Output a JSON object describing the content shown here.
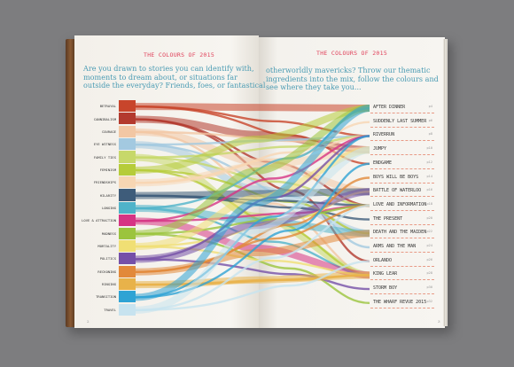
{
  "left_header": "THE COLOURS OF 2015",
  "right_header": "THE COLOURS OF 2015",
  "left_intro": [
    "Are you drawn to stories you can identify with,",
    "moments to dream about, or situations far",
    "outside the everyday? Friends, foes, or fantastical"
  ],
  "right_intro": [
    "otherworldly mavericks? Throw our thematic",
    "ingredients into the mix, follow the colours and",
    "see where they take you..."
  ],
  "themes": [
    {
      "label": "BETRAYAL",
      "color": "#c8452b"
    },
    {
      "label": "CANNIBALISM",
      "color": "#b33a2e"
    },
    {
      "label": "COURAGE",
      "color": "#f2c7a4"
    },
    {
      "label": "EYE WITNESS",
      "color": "#a3c9e0"
    },
    {
      "label": "FAMILY TIES",
      "color": "#c7d86a"
    },
    {
      "label": "FEMINISM",
      "color": "#b6cc3a"
    },
    {
      "label": "FRIENDSHIPS",
      "color": "#f7d6b3"
    },
    {
      "label": "HILARITY",
      "color": "#3e5c7a"
    },
    {
      "label": "LONGING",
      "color": "#4fb3c9"
    },
    {
      "label": "LOVE & ATTRACTION",
      "color": "#d63484"
    },
    {
      "label": "MADNESS",
      "color": "#9bc43d"
    },
    {
      "label": "MORTALITY",
      "color": "#f0df74"
    },
    {
      "label": "POLITICS",
      "color": "#7550a8"
    },
    {
      "label": "RECKONING",
      "color": "#e2893a"
    },
    {
      "label": "RINGING",
      "color": "#e8b24a"
    },
    {
      "label": "TRANSITION",
      "color": "#2fa3d4"
    },
    {
      "label": "TRAVEL",
      "color": "#c7e3ef"
    }
  ],
  "titles": [
    {
      "name": "AFTER DINNER",
      "page": "p4"
    },
    {
      "name": "SUDDENLY LAST SUMMER",
      "page": "p6"
    },
    {
      "name": "RIVERRUN",
      "page": "p8"
    },
    {
      "name": "JUMPY",
      "page": "p10"
    },
    {
      "name": "ENDGAME",
      "page": "p12"
    },
    {
      "name": "BOYS WILL BE BOYS",
      "page": "p14"
    },
    {
      "name": "BATTLE OF WATERLOO",
      "page": "p16"
    },
    {
      "name": "LOVE AND INFORMATION",
      "page": "p18"
    },
    {
      "name": "THE PRESENT",
      "page": "p20"
    },
    {
      "name": "DEATH AND THE MAIDEN",
      "page": "p22"
    },
    {
      "name": "ARMS AND THE MAN",
      "page": "p24"
    },
    {
      "name": "ORLANDO",
      "page": "p26"
    },
    {
      "name": "KING LEAR",
      "page": "p28"
    },
    {
      "name": "STORM BOY",
      "page": "p30"
    },
    {
      "name": "THE WHARF REVUE 2015",
      "page": "p32"
    }
  ],
  "folio_left": "2",
  "folio_right": "3",
  "background": "#7d7d7f",
  "header_color": "#e0405a",
  "intro_color": "#4a9bb3"
}
